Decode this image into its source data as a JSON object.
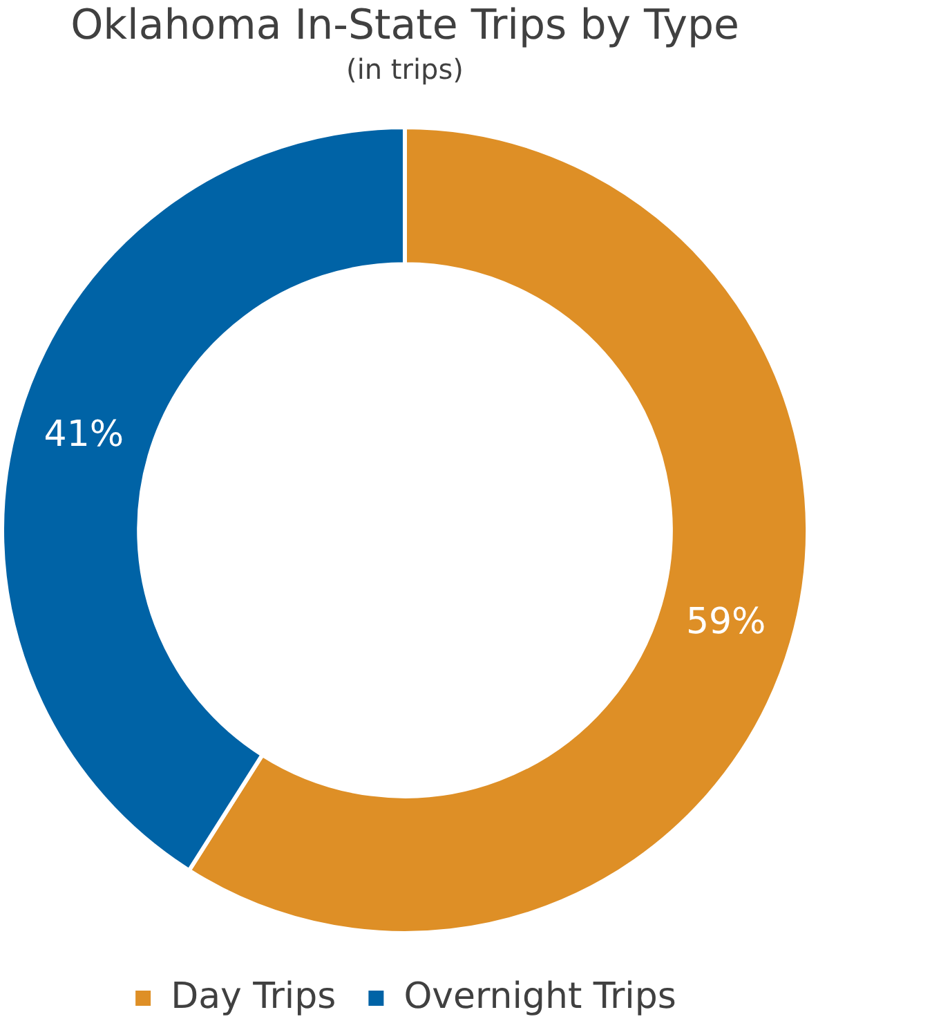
{
  "chart_data": {
    "type": "donut",
    "title": "Oklahoma In-State Trips by Type",
    "subtitle": "(in trips)",
    "categories": [
      "Day Trips",
      "Overnight Trips"
    ],
    "values": [
      59,
      41
    ],
    "value_labels": [
      "59%",
      "41%"
    ],
    "colors": [
      "#de8f26",
      "#0063a6"
    ],
    "legend": "bottom"
  }
}
